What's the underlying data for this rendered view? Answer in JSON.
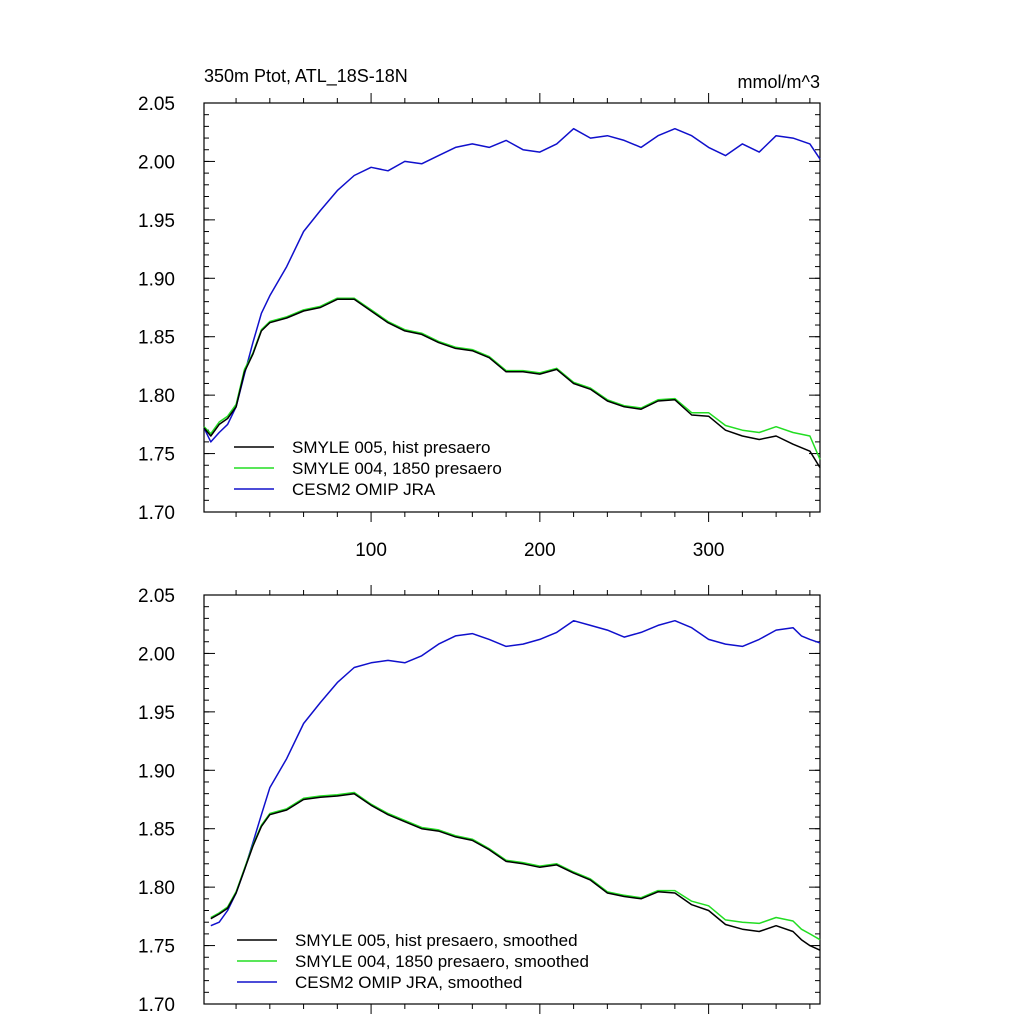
{
  "title_left": "350m Ptot, ATL_18S-18N",
  "title_right": "mmol/m^3",
  "colors": {
    "hist": "#000000",
    "c1850": "#22dd22",
    "omip": "#1010cc"
  },
  "chart_data": [
    {
      "type": "line",
      "panel": "top",
      "xlim": [
        1,
        366
      ],
      "ylim": [
        1.7,
        2.05
      ],
      "xticks": [
        100,
        200,
        300
      ],
      "xtick_labels": [
        "100",
        "200",
        "300"
      ],
      "yticks": [
        1.7,
        1.75,
        1.8,
        1.85,
        1.9,
        1.95,
        2.0,
        2.05
      ],
      "ytick_labels": [
        "1.70",
        "1.75",
        "1.80",
        "1.85",
        "1.90",
        "1.95",
        "2.00",
        "2.05"
      ],
      "legend_location": "bottom-left",
      "series": [
        {
          "key": "hist",
          "name": "SMYLE 005, hist presaero",
          "x": [
            1,
            5,
            10,
            15,
            20,
            25,
            30,
            35,
            40,
            50,
            60,
            70,
            80,
            90,
            100,
            110,
            120,
            130,
            140,
            150,
            160,
            170,
            180,
            190,
            200,
            210,
            220,
            230,
            240,
            250,
            260,
            270,
            280,
            290,
            300,
            310,
            320,
            330,
            340,
            350,
            360,
            366
          ],
          "y": [
            1.772,
            1.765,
            1.775,
            1.78,
            1.79,
            1.82,
            1.835,
            1.855,
            1.862,
            1.866,
            1.872,
            1.875,
            1.882,
            1.882,
            1.872,
            1.862,
            1.855,
            1.852,
            1.845,
            1.84,
            1.838,
            1.832,
            1.82,
            1.82,
            1.818,
            1.822,
            1.81,
            1.805,
            1.795,
            1.79,
            1.788,
            1.795,
            1.796,
            1.783,
            1.782,
            1.77,
            1.765,
            1.762,
            1.765,
            1.758,
            1.752,
            1.738
          ]
        },
        {
          "key": "c1850",
          "name": "SMYLE 004, 1850 presaero",
          "x": [
            1,
            5,
            10,
            15,
            20,
            25,
            30,
            35,
            40,
            50,
            60,
            70,
            80,
            90,
            100,
            110,
            120,
            130,
            140,
            150,
            160,
            170,
            180,
            190,
            200,
            210,
            220,
            230,
            240,
            250,
            260,
            270,
            280,
            290,
            300,
            310,
            320,
            330,
            340,
            350,
            360,
            366
          ],
          "y": [
            1.773,
            1.767,
            1.777,
            1.782,
            1.792,
            1.822,
            1.836,
            1.856,
            1.863,
            1.867,
            1.873,
            1.876,
            1.883,
            1.883,
            1.873,
            1.863,
            1.856,
            1.853,
            1.846,
            1.841,
            1.839,
            1.833,
            1.821,
            1.821,
            1.819,
            1.823,
            1.811,
            1.806,
            1.796,
            1.791,
            1.789,
            1.796,
            1.797,
            1.785,
            1.785,
            1.774,
            1.77,
            1.768,
            1.773,
            1.768,
            1.765,
            1.745
          ]
        },
        {
          "key": "omip",
          "name": "CESM2 OMIP JRA",
          "x": [
            1,
            5,
            10,
            15,
            20,
            25,
            30,
            35,
            40,
            50,
            60,
            70,
            80,
            90,
            100,
            110,
            120,
            130,
            140,
            150,
            160,
            170,
            180,
            190,
            200,
            210,
            220,
            230,
            240,
            250,
            260,
            270,
            280,
            290,
            300,
            310,
            320,
            330,
            340,
            350,
            360,
            366
          ],
          "y": [
            1.772,
            1.76,
            1.768,
            1.775,
            1.79,
            1.818,
            1.845,
            1.87,
            1.885,
            1.91,
            1.94,
            1.958,
            1.975,
            1.988,
            1.995,
            1.992,
            2.0,
            1.998,
            2.005,
            2.012,
            2.015,
            2.012,
            2.018,
            2.01,
            2.008,
            2.015,
            2.028,
            2.02,
            2.022,
            2.018,
            2.012,
            2.022,
            2.028,
            2.022,
            2.012,
            2.005,
            2.015,
            2.008,
            2.022,
            2.02,
            2.015,
            2.002
          ]
        }
      ]
    },
    {
      "type": "line",
      "panel": "bottom",
      "xlim": [
        1,
        366
      ],
      "ylim": [
        1.7,
        2.05
      ],
      "xticks": [
        100,
        200,
        300
      ],
      "yticks": [
        1.7,
        1.75,
        1.8,
        1.85,
        1.9,
        1.95,
        2.0,
        2.05
      ],
      "ytick_labels": [
        "1.70",
        "1.75",
        "1.80",
        "1.85",
        "1.90",
        "1.95",
        "2.00",
        "2.05"
      ],
      "legend_location": "bottom-left",
      "series": [
        {
          "key": "hist",
          "name": "SMYLE 005, hist presaero, smoothed",
          "x": [
            5,
            10,
            15,
            20,
            25,
            30,
            35,
            40,
            50,
            60,
            70,
            80,
            90,
            100,
            110,
            120,
            130,
            140,
            150,
            160,
            170,
            180,
            190,
            200,
            210,
            220,
            230,
            240,
            250,
            260,
            270,
            280,
            290,
            300,
            310,
            320,
            330,
            340,
            350,
            355,
            360,
            366
          ],
          "y": [
            1.773,
            1.777,
            1.782,
            1.795,
            1.815,
            1.835,
            1.852,
            1.862,
            1.866,
            1.875,
            1.877,
            1.878,
            1.88,
            1.87,
            1.862,
            1.856,
            1.85,
            1.848,
            1.843,
            1.84,
            1.832,
            1.822,
            1.82,
            1.817,
            1.819,
            1.812,
            1.806,
            1.795,
            1.792,
            1.79,
            1.796,
            1.795,
            1.785,
            1.78,
            1.768,
            1.764,
            1.762,
            1.767,
            1.762,
            1.755,
            1.75,
            1.746
          ]
        },
        {
          "key": "c1850",
          "name": "SMYLE 004, 1850 presaero, smoothed",
          "x": [
            5,
            10,
            15,
            20,
            25,
            30,
            35,
            40,
            50,
            60,
            70,
            80,
            90,
            100,
            110,
            120,
            130,
            140,
            150,
            160,
            170,
            180,
            190,
            200,
            210,
            220,
            230,
            240,
            250,
            260,
            270,
            280,
            290,
            300,
            310,
            320,
            330,
            340,
            350,
            355,
            360,
            366
          ],
          "y": [
            1.774,
            1.778,
            1.783,
            1.796,
            1.816,
            1.836,
            1.853,
            1.863,
            1.867,
            1.876,
            1.878,
            1.879,
            1.881,
            1.871,
            1.863,
            1.857,
            1.851,
            1.849,
            1.844,
            1.841,
            1.833,
            1.823,
            1.821,
            1.818,
            1.82,
            1.813,
            1.807,
            1.796,
            1.793,
            1.791,
            1.797,
            1.797,
            1.788,
            1.784,
            1.772,
            1.77,
            1.769,
            1.774,
            1.771,
            1.764,
            1.76,
            1.755
          ]
        },
        {
          "key": "omip",
          "name": "CESM2 OMIP JRA, smoothed",
          "x": [
            5,
            10,
            15,
            20,
            25,
            30,
            35,
            40,
            50,
            60,
            70,
            80,
            90,
            100,
            110,
            120,
            130,
            140,
            150,
            160,
            170,
            180,
            190,
            200,
            210,
            220,
            230,
            240,
            250,
            260,
            270,
            280,
            290,
            300,
            310,
            320,
            330,
            340,
            350,
            355,
            360,
            366
          ],
          "y": [
            1.767,
            1.77,
            1.78,
            1.795,
            1.815,
            1.838,
            1.862,
            1.885,
            1.91,
            1.94,
            1.958,
            1.975,
            1.988,
            1.992,
            1.994,
            1.992,
            1.998,
            2.008,
            2.015,
            2.017,
            2.012,
            2.006,
            2.008,
            2.012,
            2.018,
            2.028,
            2.024,
            2.02,
            2.014,
            2.018,
            2.024,
            2.028,
            2.022,
            2.012,
            2.008,
            2.006,
            2.012,
            2.02,
            2.022,
            2.015,
            2.012,
            2.009
          ]
        }
      ]
    }
  ]
}
